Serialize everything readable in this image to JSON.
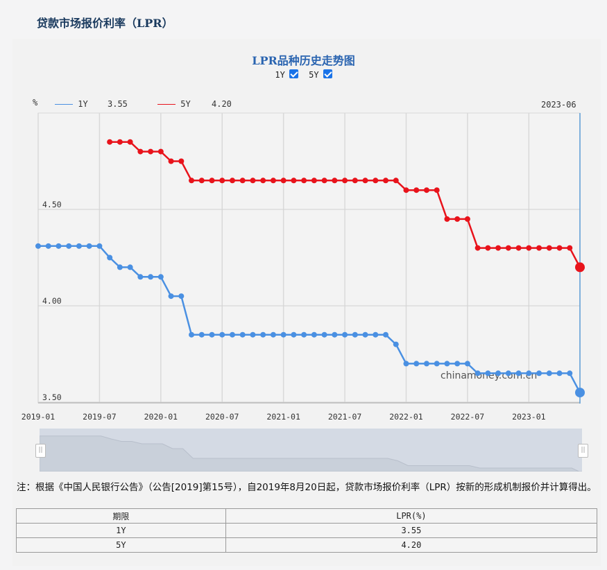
{
  "page": {
    "title": "贷款市场报价利率（LPR）"
  },
  "chart_header": {
    "title": "LPR品种历史走势图",
    "toggles": [
      {
        "label": "1Y",
        "checked": true
      },
      {
        "label": "5Y",
        "checked": true
      }
    ],
    "unit": "%",
    "legend": [
      {
        "name": "1Y",
        "value": "3.55",
        "color": "#4a90e2"
      },
      {
        "name": "5Y",
        "value": "4.20",
        "color": "#e8131b"
      }
    ],
    "current_date": "2023-06",
    "watermark": "chinamoney.com.cn"
  },
  "chart_data": {
    "type": "line",
    "title": "LPR品种历史走势图",
    "xlabel": "",
    "ylabel": "%",
    "ylim": [
      3.5,
      5.0
    ],
    "yticks": [
      "3.50",
      "4.00",
      "4.50"
    ],
    "xticks": [
      "2019-01",
      "2019-07",
      "2020-01",
      "2020-07",
      "2021-01",
      "2021-07",
      "2022-01",
      "2022-07",
      "2023-01"
    ],
    "grid": true,
    "legend_position": "top-left",
    "x": [
      "2019-01",
      "2019-02",
      "2019-03",
      "2019-04",
      "2019-05",
      "2019-06",
      "2019-07",
      "2019-08",
      "2019-09",
      "2019-10",
      "2019-11",
      "2019-12",
      "2020-01",
      "2020-02",
      "2020-03",
      "2020-04",
      "2020-05",
      "2020-06",
      "2020-07",
      "2020-08",
      "2020-09",
      "2020-10",
      "2020-11",
      "2020-12",
      "2021-01",
      "2021-02",
      "2021-03",
      "2021-04",
      "2021-05",
      "2021-06",
      "2021-07",
      "2021-08",
      "2021-09",
      "2021-10",
      "2021-11",
      "2021-12",
      "2022-01",
      "2022-02",
      "2022-03",
      "2022-04",
      "2022-05",
      "2022-06",
      "2022-07",
      "2022-08",
      "2022-09",
      "2022-10",
      "2022-11",
      "2022-12",
      "2023-01",
      "2023-02",
      "2023-03",
      "2023-04",
      "2023-05",
      "2023-06"
    ],
    "series": [
      {
        "name": "1Y",
        "color": "#4a90e2",
        "values": [
          4.31,
          4.31,
          4.31,
          4.31,
          4.31,
          4.31,
          4.31,
          4.25,
          4.2,
          4.2,
          4.15,
          4.15,
          4.15,
          4.05,
          4.05,
          3.85,
          3.85,
          3.85,
          3.85,
          3.85,
          3.85,
          3.85,
          3.85,
          3.85,
          3.85,
          3.85,
          3.85,
          3.85,
          3.85,
          3.85,
          3.85,
          3.85,
          3.85,
          3.85,
          3.85,
          3.8,
          3.7,
          3.7,
          3.7,
          3.7,
          3.7,
          3.7,
          3.7,
          3.65,
          3.65,
          3.65,
          3.65,
          3.65,
          3.65,
          3.65,
          3.65,
          3.65,
          3.65,
          3.55
        ]
      },
      {
        "name": "5Y",
        "color": "#e8131b",
        "values": [
          null,
          null,
          null,
          null,
          null,
          null,
          null,
          4.85,
          4.85,
          4.85,
          4.8,
          4.8,
          4.8,
          4.75,
          4.75,
          4.65,
          4.65,
          4.65,
          4.65,
          4.65,
          4.65,
          4.65,
          4.65,
          4.65,
          4.65,
          4.65,
          4.65,
          4.65,
          4.65,
          4.65,
          4.65,
          4.65,
          4.65,
          4.65,
          4.65,
          4.65,
          4.6,
          4.6,
          4.6,
          4.6,
          4.45,
          4.45,
          4.45,
          4.3,
          4.3,
          4.3,
          4.3,
          4.3,
          4.3,
          4.3,
          4.3,
          4.3,
          4.3,
          4.2
        ]
      }
    ]
  },
  "note": "注：根据《中国人民银行公告》（公告[2019]第15号），自2019年8月20日起，贷款市场报价利率（LPR）按新的形成机制报价并计算得出。",
  "table": {
    "headers": [
      "期限",
      "LPR(%)"
    ],
    "rows": [
      [
        "1Y",
        "3.55"
      ],
      [
        "5Y",
        "4.20"
      ]
    ]
  }
}
